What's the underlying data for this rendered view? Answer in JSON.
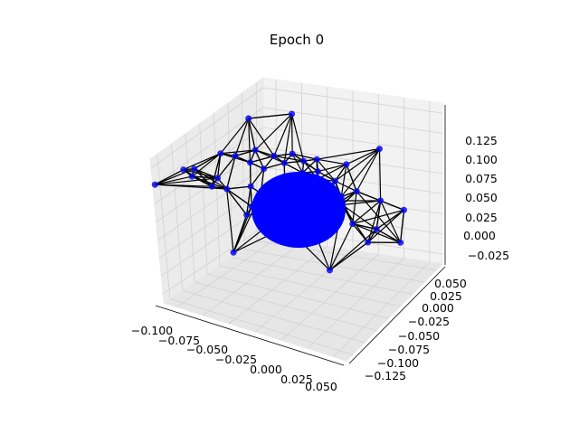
{
  "chart_data": {
    "type": "scatter",
    "projection": "3d",
    "title": "Epoch 0",
    "xlabel": "",
    "ylabel": "",
    "zlabel": "",
    "xlim": [
      -0.105,
      0.06
    ],
    "ylim": [
      -0.135,
      0.06
    ],
    "zlim": [
      -0.035,
      0.135
    ],
    "x_ticks": [
      "−0.100",
      "−0.075",
      "−0.050",
      "−0.025",
      "0.000",
      "0.025",
      "0.050"
    ],
    "y_ticks": [
      "−0.125",
      "−0.100",
      "−0.075",
      "−0.050",
      "−0.025",
      "0.000",
      "0.025",
      "0.050"
    ],
    "z_ticks": [
      "−0.025",
      "0.000",
      "0.025",
      "0.050",
      "0.075",
      "0.100",
      "0.125"
    ],
    "grid": true,
    "node_color": "#0000ff",
    "edge_color": "#000000",
    "points": [
      {
        "x": -0.005,
        "y": -0.005,
        "z": 0.08
      },
      {
        "x": 0.01,
        "y": 0.0,
        "z": 0.075
      },
      {
        "x": -0.015,
        "y": 0.005,
        "z": 0.07
      },
      {
        "x": 0.0,
        "y": -0.015,
        "z": 0.065
      },
      {
        "x": 0.015,
        "y": -0.01,
        "z": 0.06
      },
      {
        "x": -0.01,
        "y": -0.02,
        "z": 0.055
      },
      {
        "x": 0.005,
        "y": 0.01,
        "z": 0.05
      },
      {
        "x": -0.02,
        "y": -0.01,
        "z": 0.045
      },
      {
        "x": 0.02,
        "y": 0.005,
        "z": 0.04
      },
      {
        "x": 0.0,
        "y": 0.0,
        "z": 0.035
      },
      {
        "x": -0.025,
        "y": 0.0,
        "z": 0.06
      },
      {
        "x": 0.025,
        "y": -0.005,
        "z": 0.05
      },
      {
        "x": -0.005,
        "y": 0.015,
        "z": 0.045
      },
      {
        "x": 0.01,
        "y": -0.02,
        "z": 0.07
      },
      {
        "x": -0.03,
        "y": -0.015,
        "z": 0.04
      },
      {
        "x": 0.03,
        "y": 0.0,
        "z": 0.065
      },
      {
        "x": -0.015,
        "y": -0.025,
        "z": 0.03
      },
      {
        "x": 0.015,
        "y": 0.015,
        "z": 0.03
      },
      {
        "x": -0.035,
        "y": 0.005,
        "z": 0.055
      },
      {
        "x": 0.035,
        "y": -0.015,
        "z": 0.045
      },
      {
        "x": 0.0,
        "y": 0.02,
        "z": 0.06
      },
      {
        "x": -0.01,
        "y": -0.03,
        "z": 0.05
      },
      {
        "x": 0.02,
        "y": -0.025,
        "z": 0.035
      },
      {
        "x": -0.025,
        "y": 0.015,
        "z": 0.035
      },
      {
        "x": 0.005,
        "y": -0.005,
        "z": 0.09
      },
      {
        "x": -0.02,
        "y": -0.005,
        "z": 0.085
      },
      {
        "x": 0.02,
        "y": 0.01,
        "z": 0.08
      },
      {
        "x": -0.005,
        "y": 0.005,
        "z": 0.025
      },
      {
        "x": 0.025,
        "y": -0.02,
        "z": 0.075
      },
      {
        "x": -0.03,
        "y": -0.025,
        "z": 0.065
      },
      {
        "x": -0.04,
        "y": -0.01,
        "z": 0.03
      },
      {
        "x": 0.04,
        "y": 0.005,
        "z": 0.055
      },
      {
        "x": -0.045,
        "y": 0.01,
        "z": 0.045
      },
      {
        "x": 0.045,
        "y": -0.01,
        "z": 0.04
      },
      {
        "x": -0.015,
        "y": 0.025,
        "z": 0.05
      },
      {
        "x": 0.01,
        "y": -0.035,
        "z": 0.045
      },
      {
        "x": -0.05,
        "y": -0.02,
        "z": 0.055
      },
      {
        "x": 0.05,
        "y": -0.03,
        "z": 0.05
      },
      {
        "x": -0.055,
        "y": 0.0,
        "z": 0.02
      },
      {
        "x": 0.045,
        "y": 0.02,
        "z": 0.03
      },
      {
        "x": -0.06,
        "y": -0.03,
        "z": 0.04
      },
      {
        "x": 0.055,
        "y": -0.005,
        "z": 0.025
      },
      {
        "x": -0.02,
        "y": 0.035,
        "z": 0.085
      },
      {
        "x": 0.015,
        "y": -0.045,
        "z": 0.08
      },
      {
        "x": -0.035,
        "y": -0.04,
        "z": 0.09
      },
      {
        "x": 0.03,
        "y": 0.025,
        "z": 0.09
      },
      {
        "x": -0.01,
        "y": -0.05,
        "z": 0.015
      },
      {
        "x": 0.0,
        "y": 0.04,
        "z": 0.01
      },
      {
        "x": -0.04,
        "y": 0.03,
        "z": 0.07
      },
      {
        "x": 0.035,
        "y": -0.04,
        "z": 0.015
      }
    ]
  }
}
